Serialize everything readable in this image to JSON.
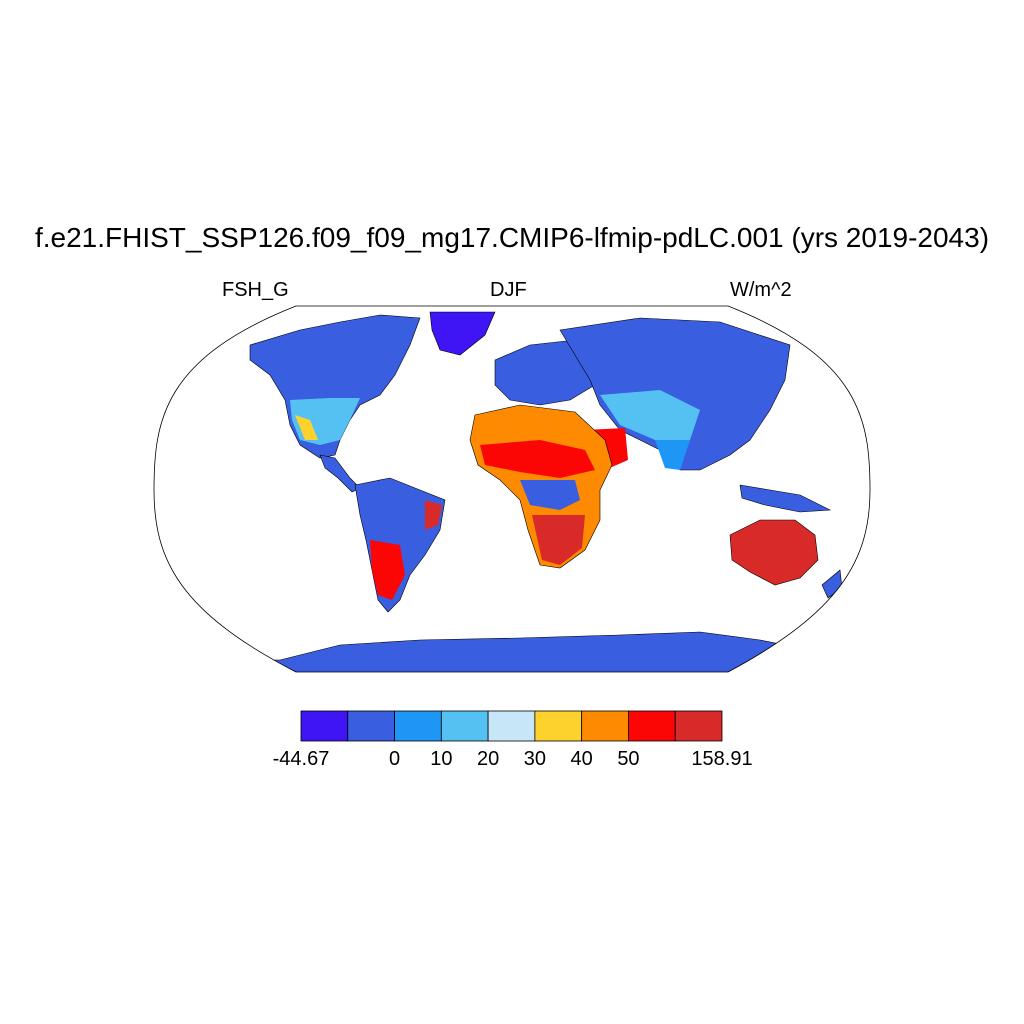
{
  "title": "f.e21.FHIST_SSP126.f09_f09_mg17.CMIP6-lfmip-pdLC.001 (yrs 2019-2043)",
  "variable": "FSH_G",
  "season": "DJF",
  "units": "W/m^2",
  "colorbar": {
    "colors": [
      "#3f14f5",
      "#3a5ee0",
      "#1e96f5",
      "#55c0f2",
      "#c7e7f8",
      "#fdd22c",
      "#fd8a00",
      "#fb0505",
      "#d92a2a"
    ],
    "labels": [
      "-44.67",
      "0",
      "10",
      "20",
      "30",
      "40",
      "50",
      "158.91"
    ]
  },
  "map": {
    "projection": "Robinson",
    "ocean_color": "#ffffff",
    "coastline_color": "#000000"
  }
}
